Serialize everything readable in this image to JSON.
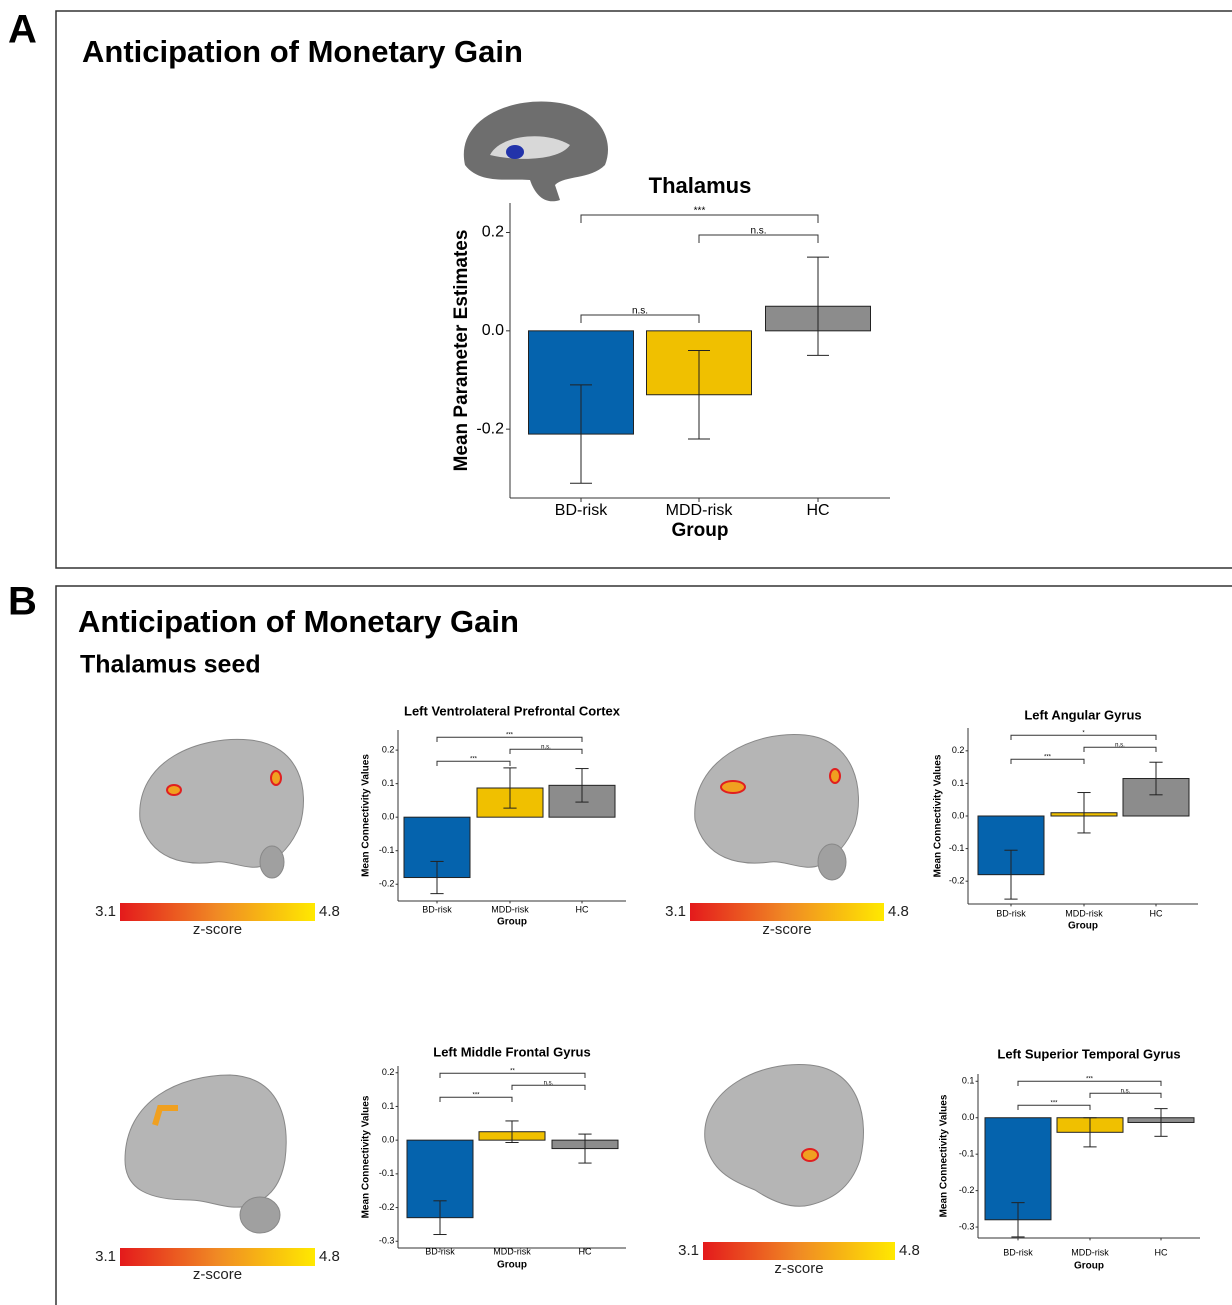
{
  "panels": [
    {
      "label": "A",
      "title": "Anticipation of Monetary Gain"
    },
    {
      "label": "B",
      "title": "Anticipation of Monetary Gain",
      "subtitle": "Thalamus seed"
    }
  ],
  "colorbars": [
    {
      "min": 3.1,
      "max": 4.8,
      "label": "z-score"
    },
    {
      "min": 3.1,
      "max": 4.8,
      "label": "z-score"
    },
    {
      "min": 3.1,
      "max": 4.8,
      "label": "z-score"
    },
    {
      "min": 3.1,
      "max": 4.8,
      "label": "z-score"
    }
  ],
  "chart_data": [
    {
      "type": "bar",
      "title": "Thalamus",
      "x_label": "Group",
      "y_label": "Mean Parameter Estimates",
      "categories": [
        "BD-risk",
        "MDD-risk",
        "HC"
      ],
      "colors": [
        "#0563ad",
        "#f0c000",
        "#8c8c8c"
      ],
      "values": [
        -0.21,
        -0.13,
        0.05
      ],
      "errors": [
        0.1,
        0.09,
        0.1
      ],
      "ylim": [
        -0.34,
        0.26
      ],
      "yticks": [
        -0.2,
        {
          "value": 0,
          "label": "0.0"
        },
        0.2
      ],
      "annotations": [
        {
          "text": "***",
          "between": [
            "BD-risk",
            "HC"
          ]
        },
        {
          "text": "n.s.",
          "between": [
            "MDD-risk",
            "HC"
          ]
        },
        {
          "text": "n.s.",
          "between": [
            "BD-risk",
            "MDD-risk"
          ]
        }
      ]
    },
    {
      "type": "bar",
      "title": "Left Ventrolateral Prefrontal Cortex",
      "x_label": "Group",
      "y_label": "Mean Connectivity Values",
      "categories": [
        "BD-risk",
        "MDD-risk",
        "HC"
      ],
      "colors": [
        "#0563ad",
        "#f0c000",
        "#8c8c8c"
      ],
      "values": [
        -0.18,
        0.087,
        0.095
      ],
      "errors": [
        0.048,
        0.06,
        0.05
      ],
      "ylim": [
        -0.25,
        0.26
      ],
      "yticks": [
        -0.2,
        -0.1,
        {
          "value": 0,
          "label": "0.0"
        },
        0.1,
        0.2
      ],
      "annotations": [
        {
          "text": "***",
          "between": [
            "BD-risk",
            "HC"
          ]
        },
        {
          "text": "n.s.",
          "between": [
            "MDD-risk",
            "HC"
          ]
        },
        {
          "text": "***",
          "between": [
            "BD-risk",
            "MDD-risk"
          ]
        }
      ]
    },
    {
      "type": "bar",
      "title": "Left Angular Gyrus",
      "x_label": "Group",
      "y_label": "Mean Connectivity Values",
      "categories": [
        "BD-risk",
        "MDD-risk",
        "HC"
      ],
      "colors": [
        "#0563ad",
        "#f0c000",
        "#8c8c8c"
      ],
      "values": [
        -0.18,
        0.01,
        0.115
      ],
      "errors": [
        0.075,
        0.062,
        0.05
      ],
      "ylim": [
        -0.27,
        0.27
      ],
      "yticks": [
        -0.2,
        -0.1,
        {
          "value": 0,
          "label": "0.0"
        },
        0.1,
        0.2
      ],
      "annotations": [
        {
          "text": "*",
          "between": [
            "BD-risk",
            "HC"
          ]
        },
        {
          "text": "n.s.",
          "between": [
            "MDD-risk",
            "HC"
          ]
        },
        {
          "text": "***",
          "between": [
            "BD-risk",
            "MDD-risk"
          ]
        }
      ]
    },
    {
      "type": "bar",
      "title": "Left Middle Frontal Gyrus",
      "x_label": "Group",
      "y_label": "Mean Connectivity Values",
      "categories": [
        "BD-risk",
        "MDD-risk",
        "HC"
      ],
      "colors": [
        "#0563ad",
        "#f0c000",
        "#8c8c8c"
      ],
      "values": [
        -0.23,
        0.025,
        -0.025
      ],
      "errors": [
        0.05,
        0.032,
        0.043
      ],
      "ylim": [
        -0.32,
        0.22
      ],
      "yticks": [
        -0.3,
        -0.2,
        -0.1,
        {
          "value": 0,
          "label": "0.0"
        },
        0.1,
        0.2
      ],
      "annotations": [
        {
          "text": "**",
          "between": [
            "BD-risk",
            "HC"
          ]
        },
        {
          "text": "n.s.",
          "between": [
            "MDD-risk",
            "HC"
          ]
        },
        {
          "text": "***",
          "between": [
            "BD-risk",
            "MDD-risk"
          ]
        }
      ]
    },
    {
      "type": "bar",
      "title": "Left Superior Temporal Gyrus",
      "x_label": "Group",
      "y_label": "Mean Connectivity Values",
      "categories": [
        "BD-risk",
        "MDD-risk",
        "HC"
      ],
      "colors": [
        "#0563ad",
        "#f0c000",
        "#8c8c8c"
      ],
      "values": [
        -0.28,
        -0.04,
        -0.013
      ],
      "errors": [
        0.047,
        0.04,
        0.038
      ],
      "ylim": [
        -0.33,
        0.12
      ],
      "yticks": [
        -0.3,
        -0.2,
        -0.1,
        {
          "value": 0,
          "label": "0.0"
        },
        0.1
      ],
      "annotations": [
        {
          "text": "***",
          "between": [
            "BD-risk",
            "HC"
          ]
        },
        {
          "text": "n.s.",
          "between": [
            "MDD-risk",
            "HC"
          ]
        },
        {
          "text": "***",
          "between": [
            "BD-risk",
            "MDD-risk"
          ]
        }
      ]
    }
  ]
}
